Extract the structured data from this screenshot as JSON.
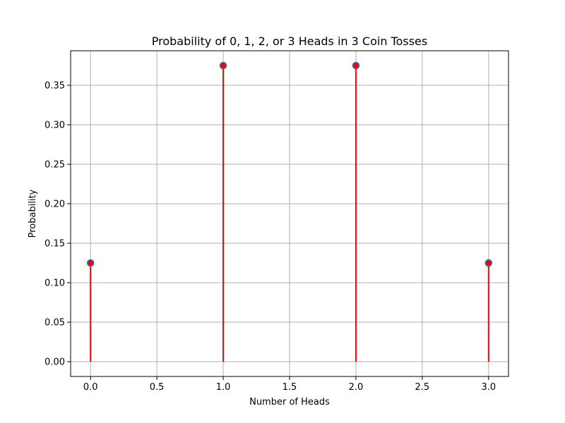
{
  "chart_data": {
    "type": "stem",
    "title": "Probability of 0, 1, 2, or 3 Heads in 3 Coin Tosses",
    "xlabel": "Number of Heads",
    "ylabel": "Probability",
    "x": [
      0,
      1,
      2,
      3
    ],
    "values": [
      0.125,
      0.375,
      0.375,
      0.125
    ],
    "xlim": [
      -0.15,
      3.15
    ],
    "ylim": [
      -0.01875,
      0.39375
    ],
    "xticks": [
      0.0,
      0.5,
      1.0,
      1.5,
      2.0,
      2.5,
      3.0
    ],
    "xtick_labels": [
      "0.0",
      "0.5",
      "1.0",
      "1.5",
      "2.0",
      "2.5",
      "3.0"
    ],
    "yticks": [
      0.0,
      0.05,
      0.1,
      0.15,
      0.2,
      0.25,
      0.3,
      0.35
    ],
    "ytick_labels": [
      "0.00",
      "0.05",
      "0.10",
      "0.15",
      "0.20",
      "0.25",
      "0.30",
      "0.35"
    ],
    "grid": true,
    "colors": {
      "stem": "#ff0000",
      "marker_face": "#ff0000",
      "marker_edge": "#1f77b4",
      "grid": "#b0b0b0"
    }
  }
}
